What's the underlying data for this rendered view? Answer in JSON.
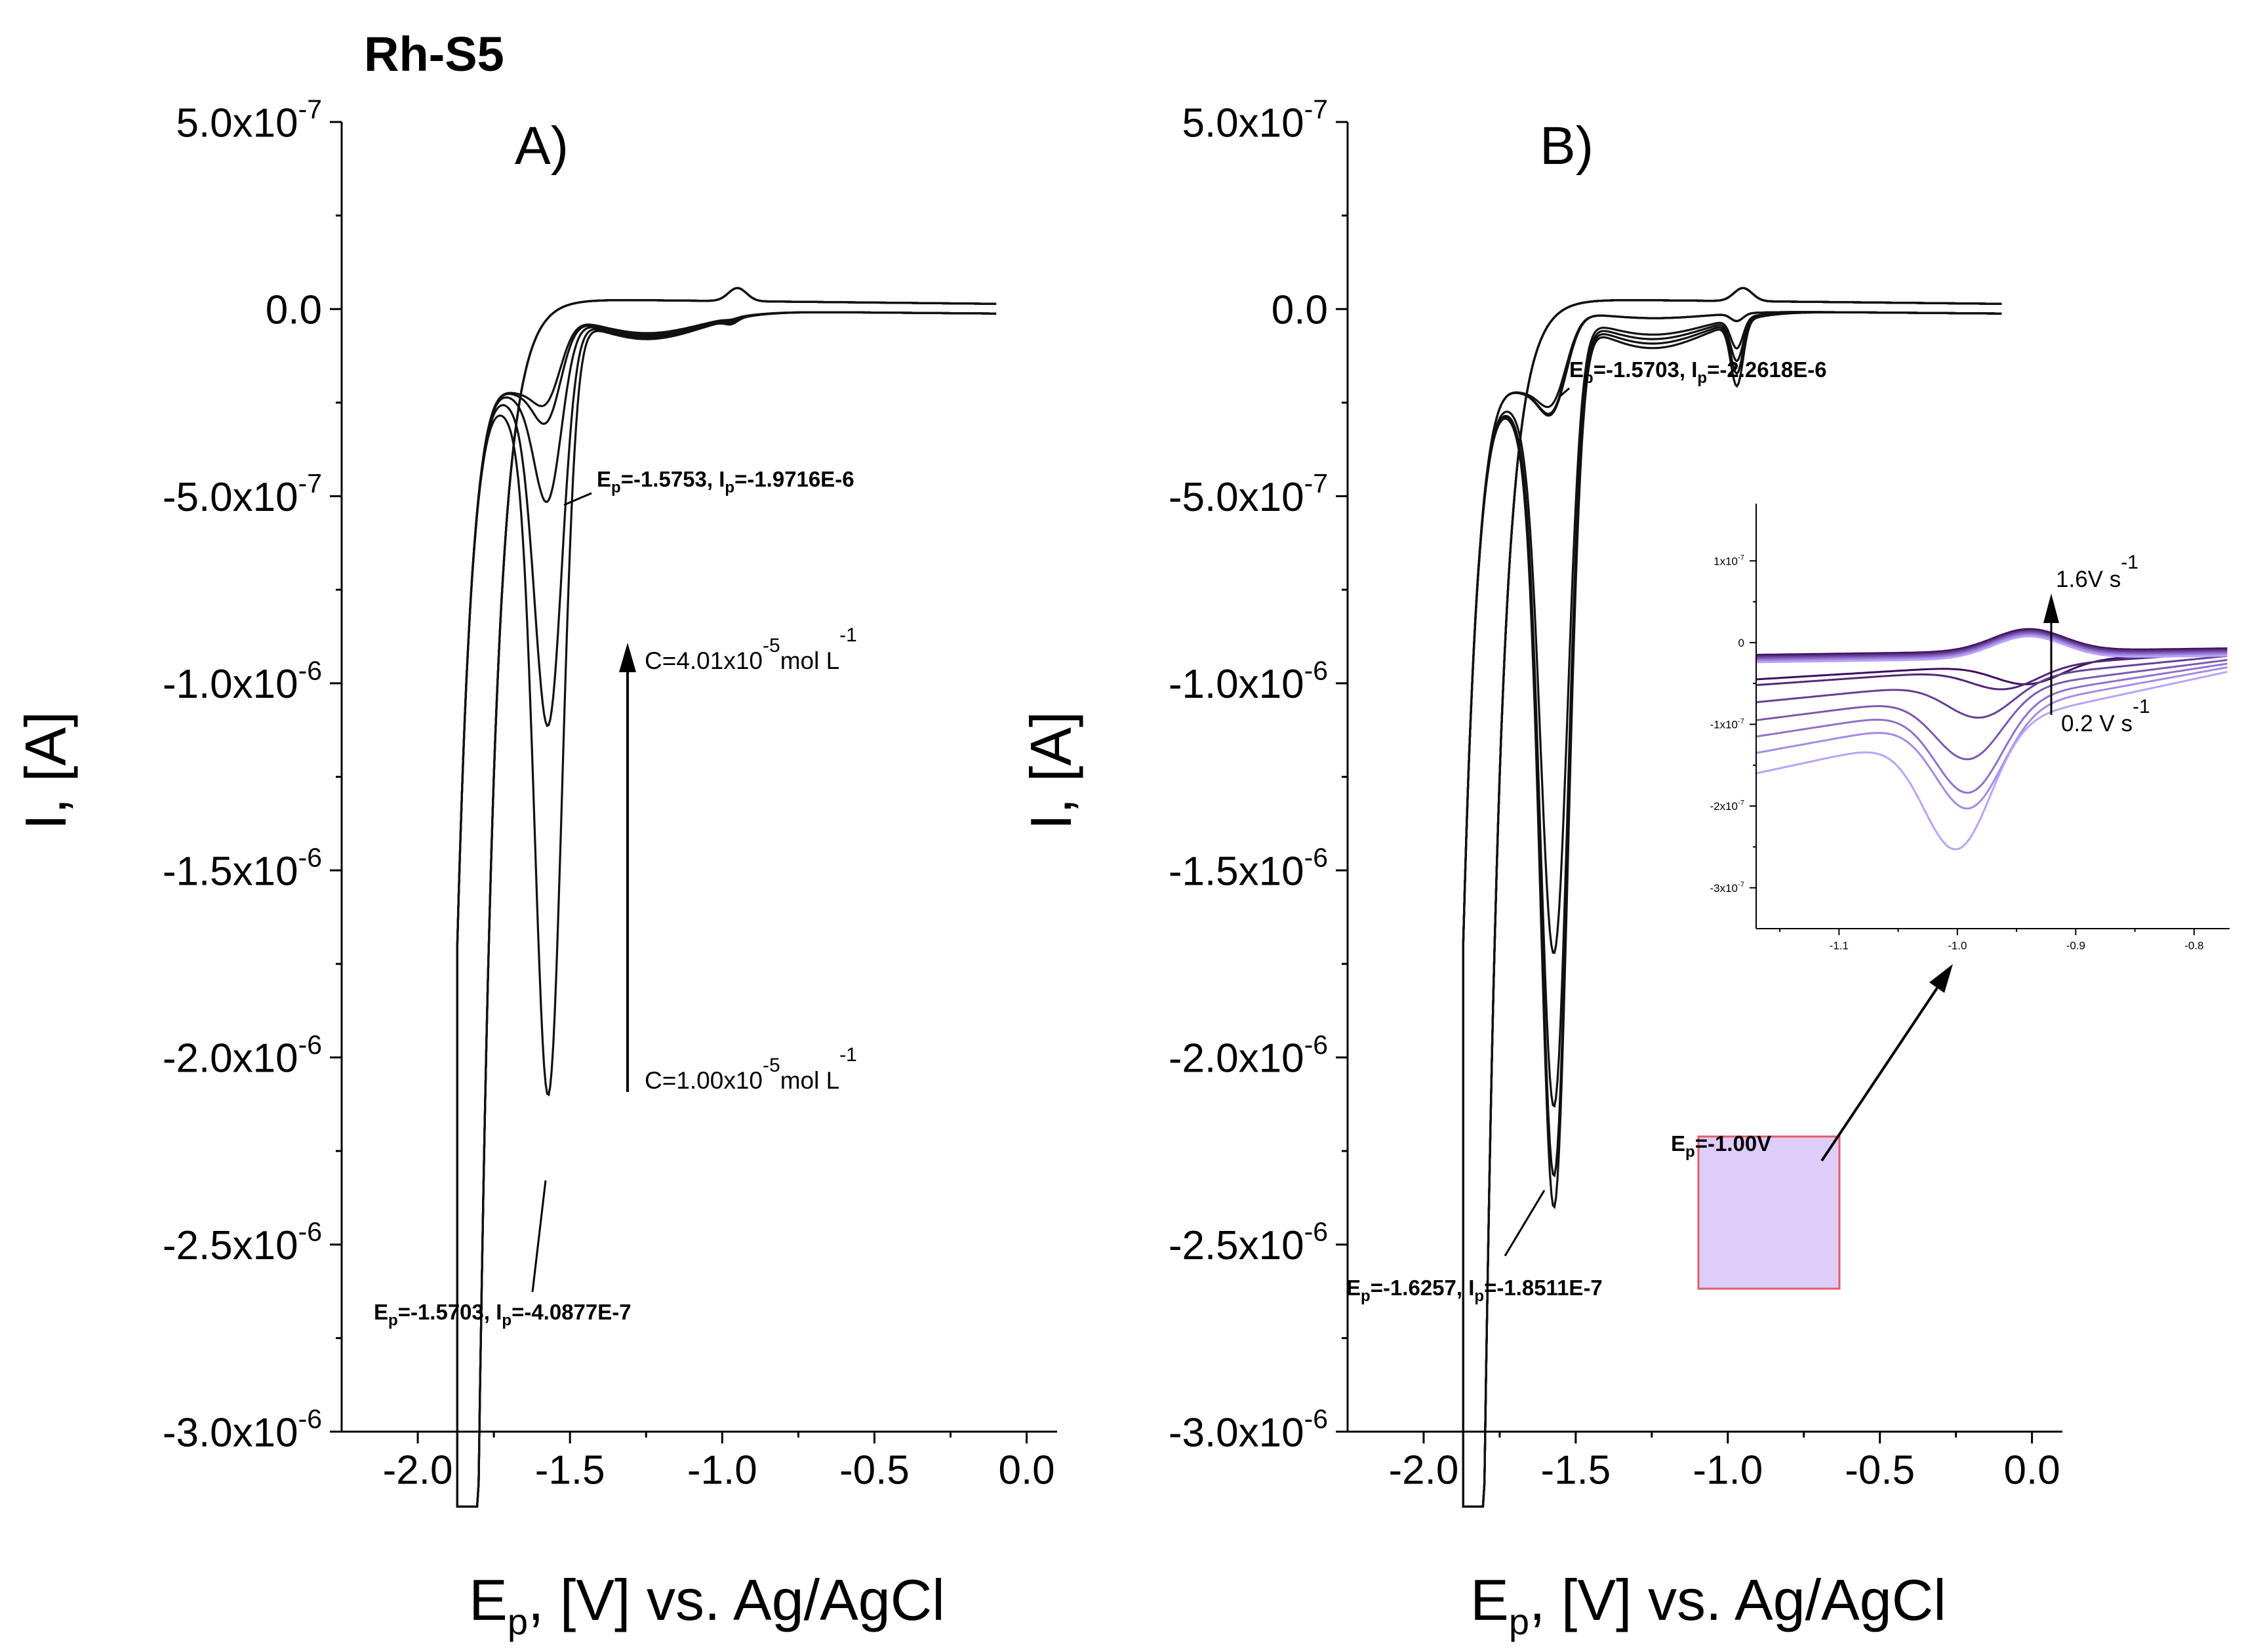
{
  "figure": {
    "title": "Rh-S5",
    "title_color": "#ee1111",
    "inset_color_start": "#3d0f5e",
    "inset_color_end": "#b9a2ff",
    "highlight_fill": "#d8c4f8",
    "highlight_stroke": "#e25d6a"
  },
  "panel_a": {
    "label": "A)",
    "ylabel": "I, [A]",
    "xlabel_main": "E",
    "xlabel_sub": "p",
    "xlabel_rest": ", [V] vs. Ag/AgCl",
    "y_tick_labels": [
      {
        "mant": "-3.0x10",
        "exp": "-6"
      },
      {
        "mant": "-2.5x10",
        "exp": "-6"
      },
      {
        "mant": "-2.0x10",
        "exp": "-6"
      },
      {
        "mant": "-1.5x10",
        "exp": "-6"
      },
      {
        "mant": "-1.0x10",
        "exp": "-6"
      },
      {
        "mant": "-5.0x10",
        "exp": "-7"
      },
      {
        "mant": "0.0",
        "exp": ""
      },
      {
        "mant": "5.0x10",
        "exp": "-7"
      }
    ],
    "x_tick_labels": [
      "-2.0",
      "-1.5",
      "-1.0",
      "-0.5",
      "0.0"
    ],
    "annotation_top": {
      "e_label": "E",
      "e_sub": "p",
      "e_value": "=-1.5753, I",
      "i_sub": "p",
      "i_value": "=-1.9716E-6"
    },
    "annotation_bottom": {
      "e_label": "E",
      "e_sub": "p",
      "e_value": "=-1.5703, I",
      "i_sub": "p",
      "i_value": "=-4.0877E-7"
    },
    "conc_high": {
      "text": "C=4.01x10",
      "exp": "-5",
      "unit": "mol L",
      "unit_exp": "-1"
    },
    "conc_low": {
      "text": "C=1.00x10",
      "exp": "-5",
      "unit": "mol L",
      "unit_exp": "-1"
    }
  },
  "panel_b": {
    "label": "B)",
    "ylabel": "I, [A]",
    "xlabel_main": "E",
    "xlabel_sub": "p",
    "xlabel_rest": ", [V] vs. Ag/AgCl",
    "y_tick_labels": [
      {
        "mant": "-3.0x10",
        "exp": "-6"
      },
      {
        "mant": "-2.5x10",
        "exp": "-6"
      },
      {
        "mant": "-2.0x10",
        "exp": "-6"
      },
      {
        "mant": "-1.5x10",
        "exp": "-6"
      },
      {
        "mant": "-1.0x10",
        "exp": "-6"
      },
      {
        "mant": "-5.0x10",
        "exp": "-7"
      },
      {
        "mant": "0.0",
        "exp": ""
      },
      {
        "mant": "5.0x10",
        "exp": "-7"
      }
    ],
    "x_tick_labels": [
      "-2.0",
      "-1.5",
      "-1.0",
      "-0.5",
      "0.0"
    ],
    "annotation_top": {
      "e_label": "E",
      "e_sub": "p",
      "e_value": "=-1.5703, I",
      "i_sub": "p",
      "i_value": "=-2.2618E-6"
    },
    "annotation_bottom": {
      "e_label": "E",
      "e_sub": "p",
      "e_value": "=-1.6257, I",
      "i_sub": "p",
      "i_value": "=-1.8511E-7"
    },
    "annotation_mid": {
      "e_label": "E",
      "e_sub": "p",
      "e_value": "=-1.00V"
    },
    "inset": {
      "y_tick_labels": [
        {
          "mant": "-3x10",
          "exp": "-7"
        },
        {
          "mant": "-2x10",
          "exp": "-7"
        },
        {
          "mant": "-1x10",
          "exp": "-7"
        },
        {
          "mant": "0",
          "exp": ""
        },
        {
          "mant": "1x10",
          "exp": "-7"
        }
      ],
      "x_tick_labels": [
        "-1.1",
        "-1.0",
        "-0.9",
        "-0.8"
      ],
      "rate_high": {
        "text": "1.6V s",
        "exp": "-1"
      },
      "rate_low": {
        "text": "0.2 V s",
        "exp": "-1"
      }
    }
  },
  "chart_data": [
    {
      "type": "line",
      "panel": "A)",
      "xlabel": "Ep, [V] vs. Ag/AgCl",
      "ylabel": "I, [A]",
      "xlim": [
        -2.25,
        0.1
      ],
      "ylim": [
        5e-07,
        -3e-06
      ],
      "x_ticks": [
        -2.0,
        -1.5,
        -1.0,
        -0.5,
        0.0
      ],
      "y_ticks": [
        -3e-06,
        -2.5e-06,
        -2e-06,
        -1.5e-06,
        -1e-06,
        -5e-07,
        0.0,
        5e-07
      ],
      "x_range_scanned": [
        -1.87,
        -0.1
      ],
      "series": [
        {
          "concentration_mol_L": 1e-05,
          "peak_E": -1.5703,
          "peak_I": -4.0877e-07
        },
        {
          "concentration_mol_L": 4.01e-05,
          "peak_E": -1.5753,
          "peak_I": -1.9716e-06
        }
      ],
      "peak_currents_estimated": [
        -1.5e-07,
        -2e-07,
        -4.1e-07,
        -1e-06,
        -1.97e-06
      ],
      "minor_peak_E": -0.97
    },
    {
      "type": "line",
      "panel": "B)",
      "xlabel": "Ep, [V] vs. Ag/AgCl",
      "ylabel": "I, [A]",
      "xlim": [
        -2.25,
        0.1
      ],
      "ylim": [
        5e-07,
        -3e-06
      ],
      "x_ticks": [
        -2.0,
        -1.5,
        -1.0,
        -0.5,
        0.0
      ],
      "y_ticks": [
        -3e-06,
        -2.5e-06,
        -2e-06,
        -1.5e-06,
        -1e-06,
        -5e-07,
        0.0,
        5e-07
      ],
      "x_range_scanned": [
        -1.87,
        -0.1
      ],
      "scan_rates_V_s": [
        0.2,
        1.6
      ],
      "peaks": [
        {
          "E": -1.5703,
          "I": -2.2618e-06
        },
        {
          "E": -1.6257,
          "I": -1.8511e-07
        },
        {
          "E": -1.0,
          "I": null
        }
      ],
      "peak_currents_estimated": [
        -1.6e-06,
        -2e-06,
        -2.18e-06,
        -2.26e-06
      ],
      "highlight_region": {
        "x": [
          -1.12,
          -0.7
        ],
        "y": [
          -2.9e-07,
          1.2e-07
        ]
      }
    },
    {
      "type": "line",
      "panel": "B) inset",
      "xlim": [
        -1.17,
        -0.77
      ],
      "ylim": [
        1.7e-07,
        -3.5e-07
      ],
      "x_ticks": [
        -1.1,
        -1.0,
        -0.9,
        -0.8
      ],
      "y_ticks": [
        -3e-07,
        -2e-07,
        -1e-07,
        0,
        1e-07
      ],
      "scan_rates_V_s": [
        0.2,
        1.6
      ],
      "series": [
        {
          "start_I": -4.5e-08,
          "peak_E": -0.94,
          "peak_I": -4.7e-08
        },
        {
          "start_I": -5.2e-08,
          "peak_E": -0.96,
          "peak_I": -5e-08
        },
        {
          "start_I": -7.3e-08,
          "peak_E": -0.98,
          "peak_I": -8e-08
        },
        {
          "start_I": -9.5e-08,
          "peak_E": -0.99,
          "peak_I": -1.28e-07
        },
        {
          "start_I": -1.15e-07,
          "peak_E": -0.99,
          "peak_I": -1.67e-07
        },
        {
          "start_I": -1.35e-07,
          "peak_E": -0.99,
          "peak_I": -1.82e-07
        },
        {
          "start_I": -1.6e-07,
          "peak_E": -1.0,
          "peak_I": -2.26e-07
        }
      ],
      "reverse_peak_E": -0.94,
      "reverse_peak_I": 2.7e-08
    }
  ]
}
